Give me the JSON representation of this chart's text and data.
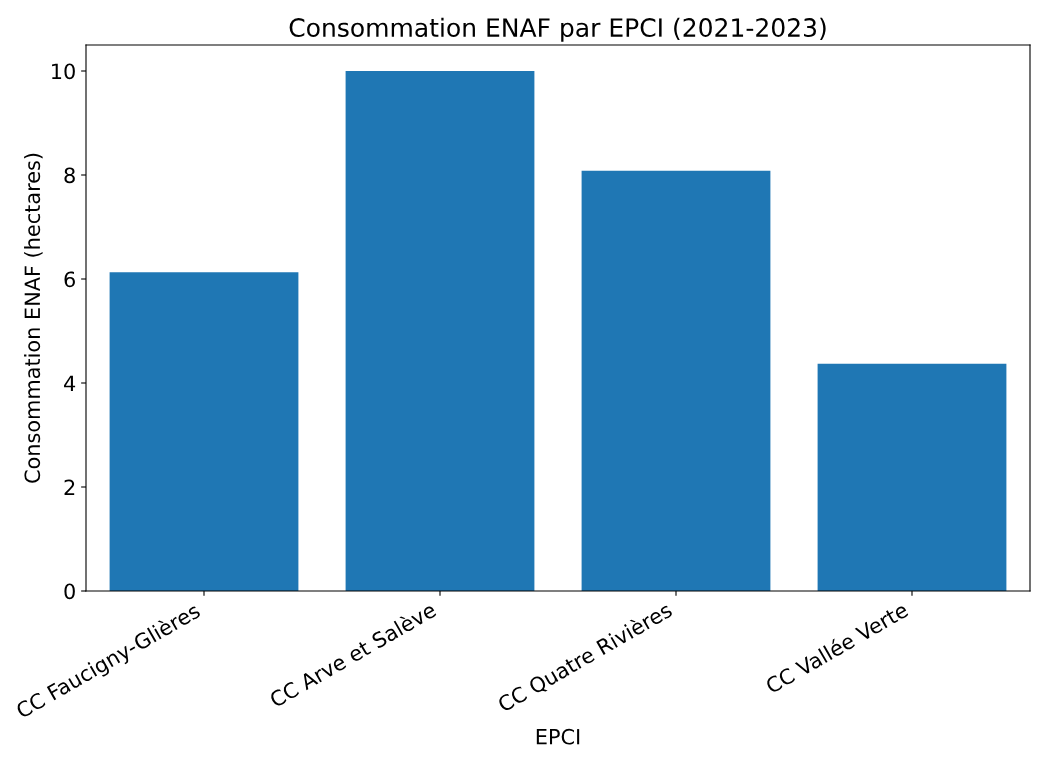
{
  "chart_data": {
    "type": "bar",
    "title": "Consommation ENAF par EPCI (2021-2023)",
    "xlabel": "EPCI",
    "ylabel": "Consommation ENAF (hectares)",
    "categories": [
      "CC Faucigny-Glières",
      "CC Arve et Salève",
      "CC Quatre Rivières",
      "CC Vallée Verte"
    ],
    "values": [
      6.13,
      10.0,
      8.08,
      4.37
    ],
    "color": "#1f77b4",
    "ylim": [
      0,
      10.5
    ],
    "yticks": [
      0,
      2,
      4,
      6,
      8,
      10
    ],
    "grid": false
  }
}
